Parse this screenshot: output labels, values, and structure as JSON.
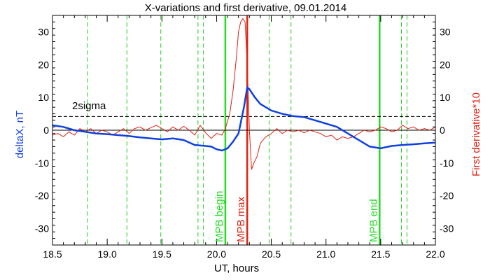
{
  "chart_data": {
    "type": "line",
    "title": "X-variations and first derivative, 09.01.2014",
    "xlabel": "UT, hours",
    "ylabel_left": "deltaX, nT",
    "ylabel_right": "First derivative*10",
    "xlim": [
      18.5,
      22.0
    ],
    "ylim": [
      -35,
      35
    ],
    "x_ticks": [
      18.5,
      19.0,
      19.5,
      20.0,
      20.5,
      21.0,
      21.5,
      22.0
    ],
    "x_tick_labels": [
      "18.5",
      "19.0",
      "19.5",
      "20.0",
      "20.5",
      "21.0",
      "21.5",
      "22.0"
    ],
    "y_ticks": [
      -30,
      -20,
      -10,
      0,
      10,
      20,
      30
    ],
    "y_tick_labels": [
      "-30",
      "-20",
      "-10",
      "0",
      "10",
      "20",
      "30"
    ],
    "threshold": {
      "label": "2sigma",
      "value": 4.2
    },
    "zero_line": 0,
    "dashed_verticals": [
      18.82,
      19.18,
      19.49,
      19.83,
      19.88,
      20.48,
      20.68,
      21.69,
      21.74
    ],
    "markers": [
      {
        "label": "MPB begin",
        "x": 20.08,
        "color": "#22dd22"
      },
      {
        "label": "MPB max",
        "x": 20.28,
        "color": "#e02010"
      },
      {
        "label": "MPB end",
        "x": 21.49,
        "color": "#22dd22"
      }
    ],
    "series": [
      {
        "color": "#1040dd",
        "axis": "left",
        "x": [
          18.5,
          18.6,
          18.7,
          18.8,
          18.9,
          19.0,
          19.1,
          19.2,
          19.3,
          19.4,
          19.5,
          19.6,
          19.7,
          19.8,
          19.9,
          19.95,
          20.0,
          20.05,
          20.1,
          20.15,
          20.2,
          20.25,
          20.28,
          20.3,
          20.35,
          20.4,
          20.5,
          20.6,
          20.7,
          20.8,
          20.9,
          21.0,
          21.1,
          21.2,
          21.3,
          21.4,
          21.5,
          21.6,
          21.7,
          21.8,
          21.9,
          22.0
        ],
        "y": [
          1.5,
          1.0,
          0.0,
          -0.5,
          -1.0,
          -1.2,
          -1.5,
          -1.8,
          -2.2,
          -2.5,
          -2.8,
          -2.5,
          -3.0,
          -4.5,
          -4.8,
          -5.0,
          -5.8,
          -6.2,
          -5.5,
          -3.5,
          -1.0,
          7.0,
          13.0,
          12.5,
          10.0,
          8.0,
          6.0,
          5.0,
          4.3,
          4.0,
          3.0,
          2.0,
          1.0,
          -1.0,
          -3.0,
          -5.0,
          -5.5,
          -4.8,
          -4.5,
          -4.3,
          -4.0,
          -3.8
        ]
      },
      {
        "color": "#e02010",
        "axis": "right",
        "x": [
          18.5,
          18.55,
          18.6,
          18.65,
          18.7,
          18.75,
          18.8,
          18.85,
          18.9,
          18.95,
          19.0,
          19.05,
          19.1,
          19.15,
          19.2,
          19.25,
          19.3,
          19.35,
          19.4,
          19.45,
          19.5,
          19.55,
          19.6,
          19.65,
          19.7,
          19.75,
          19.8,
          19.85,
          19.9,
          19.95,
          20.0,
          20.05,
          20.08,
          20.12,
          20.15,
          20.18,
          20.2,
          20.22,
          20.24,
          20.26,
          20.28,
          20.3,
          20.32,
          20.34,
          20.37,
          20.4,
          20.45,
          20.5,
          20.55,
          20.6,
          20.65,
          20.7,
          20.75,
          20.8,
          20.85,
          20.9,
          20.95,
          21.0,
          21.05,
          21.1,
          21.15,
          21.2,
          21.25,
          21.3,
          21.35,
          21.4,
          21.45,
          21.5,
          21.55,
          21.6,
          21.65,
          21.7,
          21.75,
          21.8,
          21.85,
          21.9,
          21.95,
          22.0
        ],
        "y": [
          -1.5,
          -1.0,
          -2.0,
          -0.5,
          -1.5,
          0.5,
          -0.5,
          0.5,
          -1.0,
          0.0,
          -0.5,
          -1.5,
          -0.5,
          0.5,
          -1.0,
          0.5,
          1.0,
          0.0,
          0.8,
          1.5,
          0.5,
          -0.5,
          1.0,
          0.0,
          1.2,
          0.0,
          -1.5,
          1.5,
          -0.8,
          -2.5,
          -1.0,
          -1.5,
          0.5,
          5.0,
          12.0,
          22.0,
          30.0,
          33.0,
          34.0,
          33.0,
          20.0,
          0.0,
          -12.0,
          -10.0,
          -8.0,
          -4.0,
          -2.0,
          -1.0,
          0.5,
          -1.0,
          0.0,
          -0.5,
          0.0,
          -0.8,
          0.0,
          -0.5,
          -1.0,
          -2.0,
          -1.5,
          -3.0,
          -2.0,
          -2.5,
          -2.0,
          -1.0,
          0.0,
          -0.5,
          0.0,
          1.0,
          0.5,
          -0.5,
          0.0,
          1.5,
          0.5,
          1.0,
          0.0,
          0.5,
          0.0,
          1.0
        ]
      }
    ]
  }
}
